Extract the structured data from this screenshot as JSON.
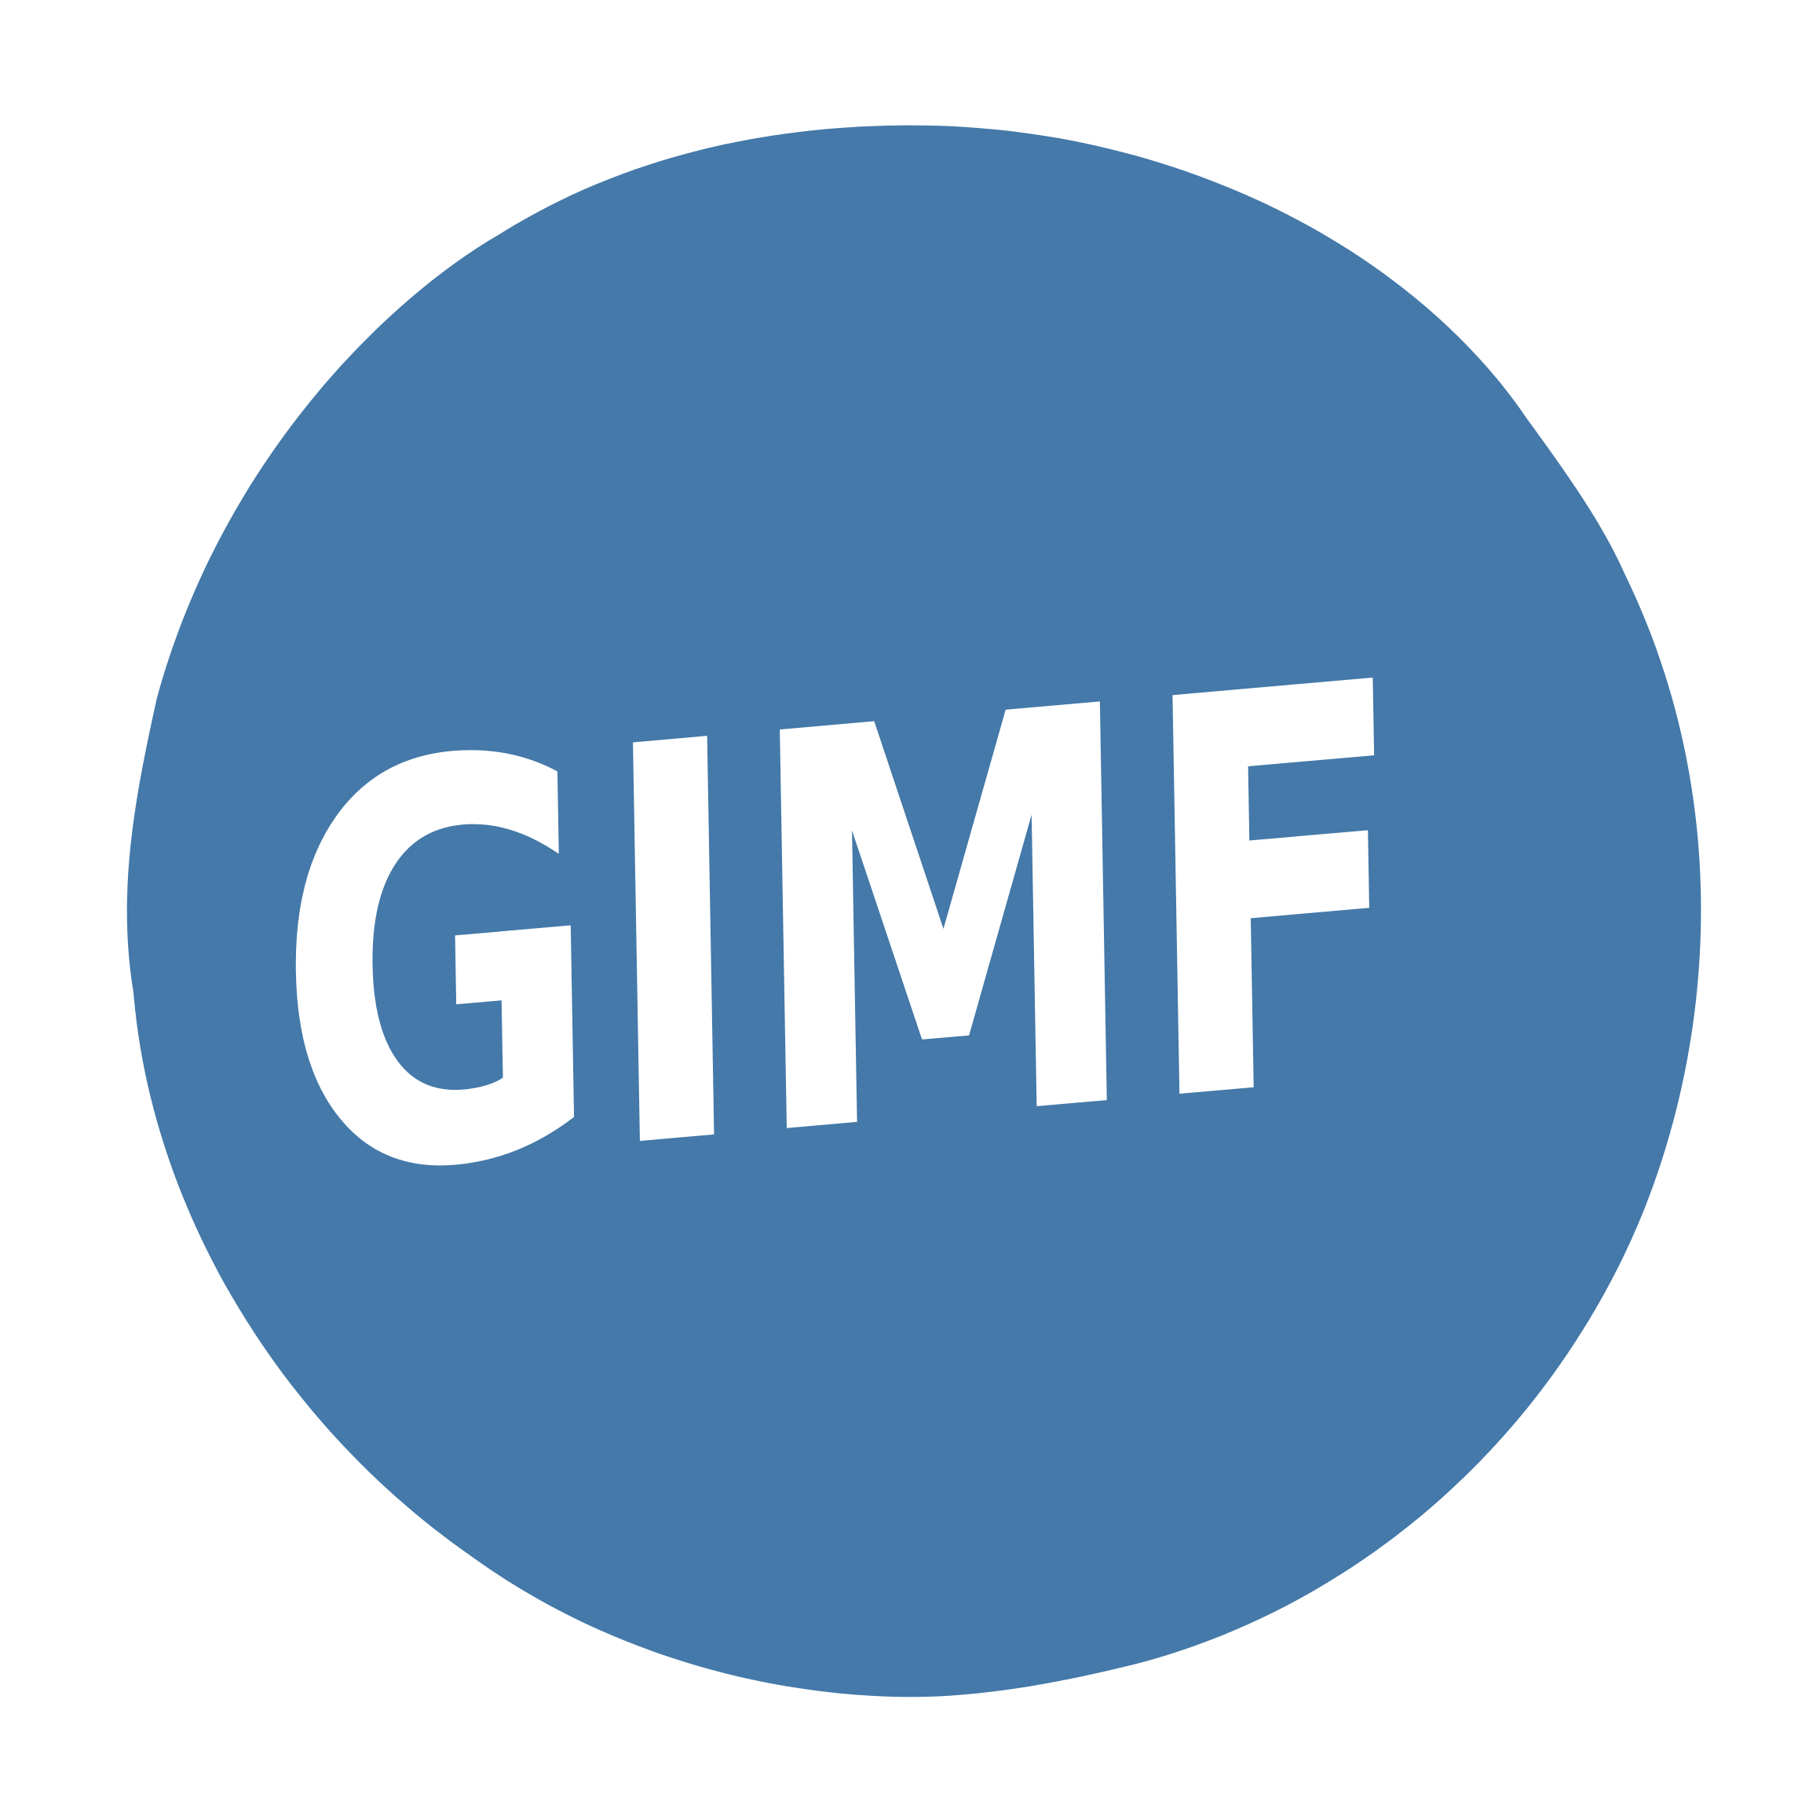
{
  "logo": {
    "text": "GIMF"
  }
}
